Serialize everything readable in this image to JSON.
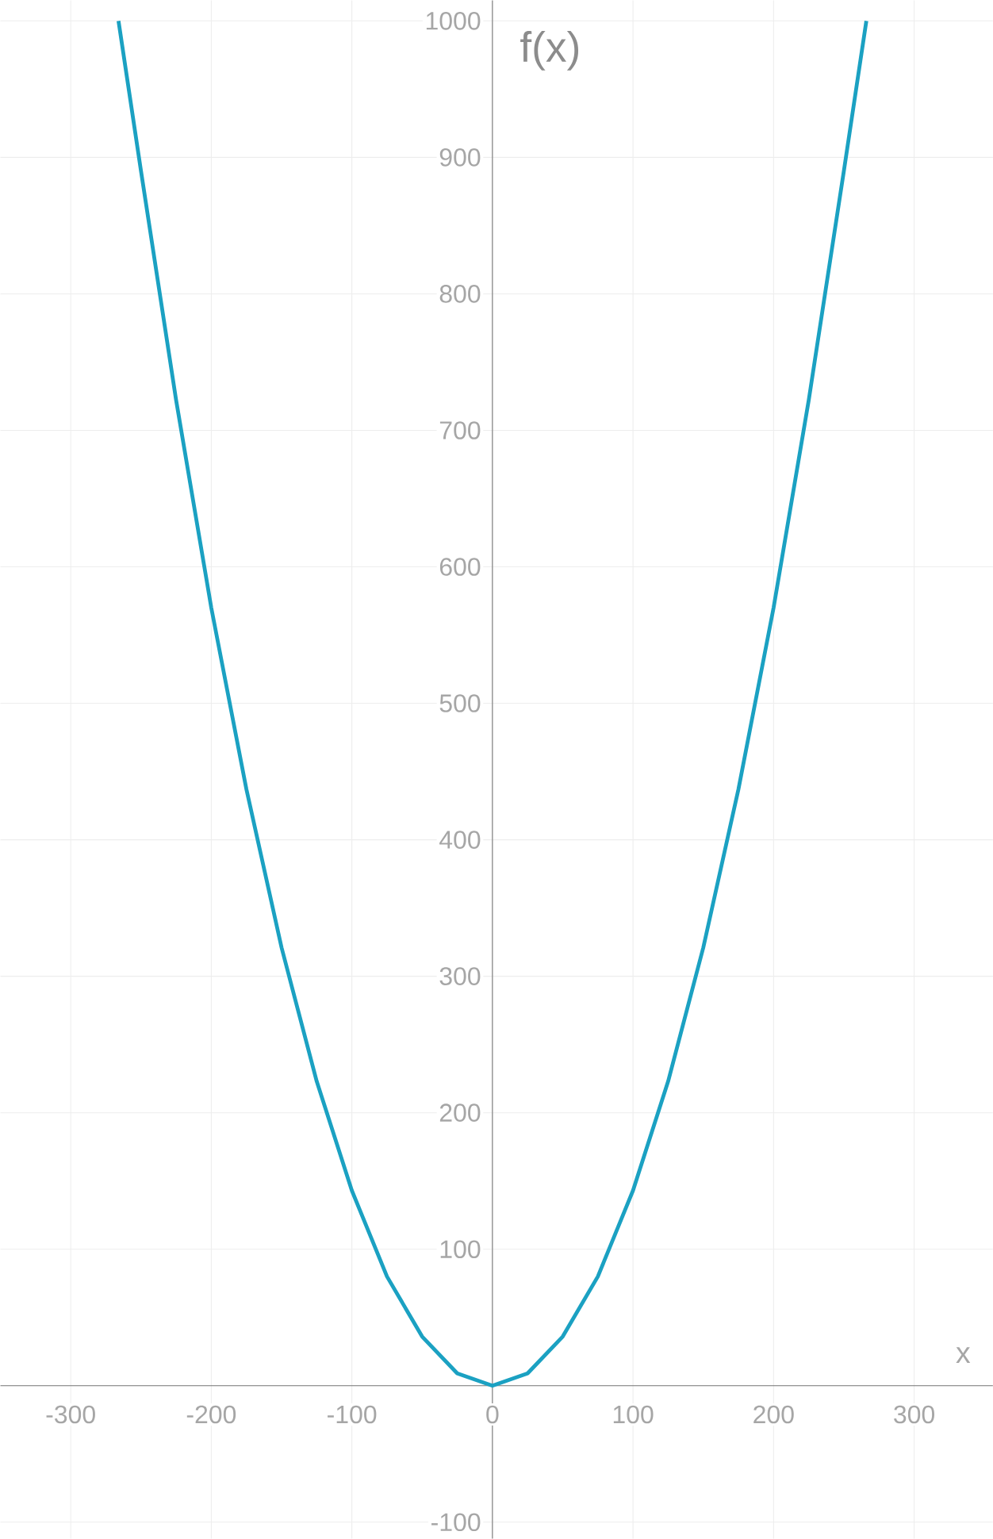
{
  "chart_data": {
    "type": "line",
    "xlabel": "x",
    "ylabel": "f(x)",
    "x": [
      -266,
      -250,
      -225,
      -200,
      -175,
      -150,
      -125,
      -100,
      -75,
      -50,
      -25,
      0,
      25,
      50,
      75,
      100,
      125,
      150,
      175,
      200,
      225,
      250,
      266
    ],
    "series": [
      {
        "color": "#1ba1c2",
        "values": [
          1000,
          890,
          722,
          570,
          437,
          321,
          223,
          143,
          80,
          36,
          9,
          0,
          9,
          36,
          80,
          143,
          223,
          321,
          437,
          570,
          722,
          890,
          1000
        ]
      }
    ],
    "xlim": [
      -350,
      356
    ],
    "ylim": [
      -112,
      1015
    ],
    "xticks": [
      -300,
      -200,
      -100,
      0,
      100,
      200,
      300
    ],
    "yticks": [
      -100,
      100,
      200,
      300,
      400,
      500,
      600,
      700,
      800,
      900,
      1000
    ],
    "grid": true
  }
}
